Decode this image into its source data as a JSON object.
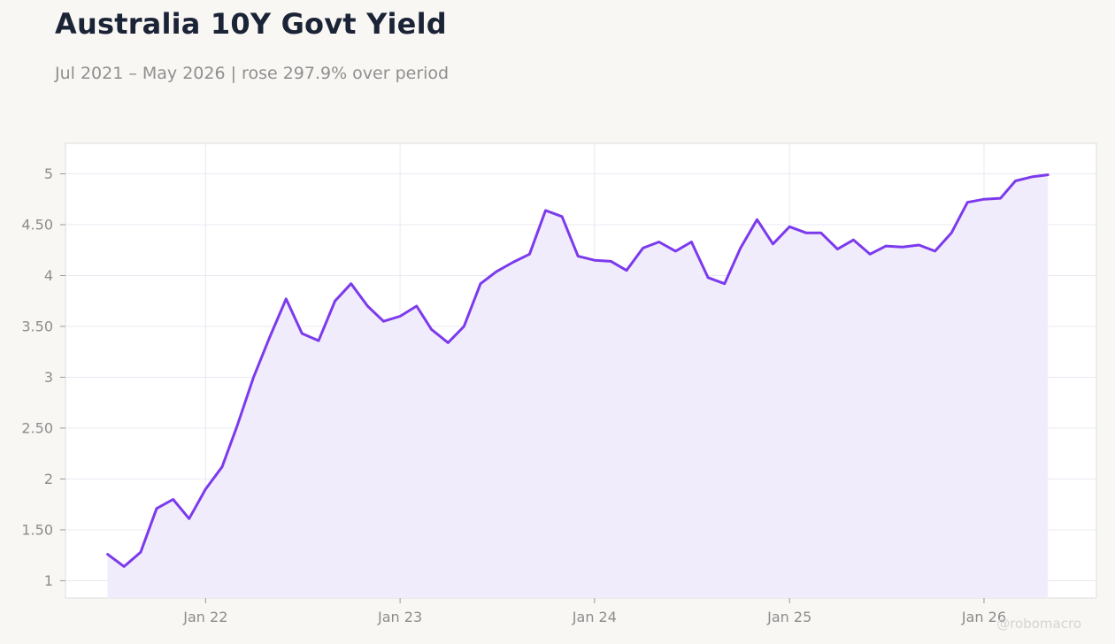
{
  "header": {
    "title": "Australia 10Y Govt Yield",
    "subtitle": "Jul 2021 – May 2026 | rose 297.9% over period"
  },
  "watermark": "@robomacro",
  "colors": {
    "background": "#f9f7f4",
    "plot_background": "#ffffff",
    "line": "#7c3aed",
    "fill": "#f1ecfc",
    "grid": "#ebe8f2",
    "axis_text": "#8c8c8c",
    "title": "#1b2436"
  },
  "chart_data": {
    "type": "area",
    "title": "Australia 10Y Govt Yield",
    "subtitle": "Jul 2021 – May 2026 | rose 297.9% over period",
    "xlabel": "",
    "ylabel": "",
    "ylim": [
      0.83,
      5.3
    ],
    "xlim": [
      "2021-04-13",
      "2026-07-31"
    ],
    "grid": true,
    "legend": "none",
    "x_ticks": [
      {
        "date": "2022-01-01",
        "label": "Jan 22"
      },
      {
        "date": "2023-01-01",
        "label": "Jan 23"
      },
      {
        "date": "2024-01-01",
        "label": "Jan 24"
      },
      {
        "date": "2025-01-01",
        "label": "Jan 25"
      },
      {
        "date": "2026-01-01",
        "label": "Jan 26"
      }
    ],
    "y_ticks": [
      {
        "value": 1,
        "label": "1"
      },
      {
        "value": 1.5,
        "label": "1.50"
      },
      {
        "value": 2,
        "label": "2"
      },
      {
        "value": 2.5,
        "label": "2.50"
      },
      {
        "value": 3,
        "label": "3"
      },
      {
        "value": 3.5,
        "label": "3.50"
      },
      {
        "value": 4,
        "label": "4"
      },
      {
        "value": 4.5,
        "label": "4.50"
      },
      {
        "value": 5,
        "label": "5"
      }
    ],
    "series": [
      {
        "x": [
          "2021-07-01",
          "2021-08-01",
          "2021-09-01",
          "2021-10-01",
          "2021-11-01",
          "2021-12-01",
          "2022-01-01",
          "2022-02-01",
          "2022-03-01",
          "2022-04-01",
          "2022-05-01",
          "2022-06-01",
          "2022-07-01",
          "2022-08-01",
          "2022-09-01",
          "2022-10-01",
          "2022-11-01",
          "2022-12-01",
          "2023-01-01",
          "2023-02-01",
          "2023-03-01",
          "2023-04-01",
          "2023-05-01",
          "2023-06-01",
          "2023-07-01",
          "2023-08-01",
          "2023-09-01",
          "2023-10-01",
          "2023-11-01",
          "2023-12-01",
          "2024-01-01",
          "2024-02-01",
          "2024-03-01",
          "2024-04-01",
          "2024-05-01",
          "2024-06-01",
          "2024-07-01",
          "2024-08-01",
          "2024-09-01",
          "2024-10-01",
          "2024-11-01",
          "2024-12-01",
          "2025-01-01",
          "2025-02-01",
          "2025-03-01",
          "2025-04-01",
          "2025-05-01",
          "2025-06-01",
          "2025-07-01",
          "2025-08-01",
          "2025-09-01",
          "2025-10-01",
          "2025-11-01",
          "2025-12-01",
          "2026-01-01",
          "2026-02-01",
          "2026-03-01",
          "2026-04-01",
          "2026-05-01"
        ],
        "y": [
          1.26,
          1.14,
          1.28,
          1.71,
          1.8,
          1.61,
          1.9,
          2.12,
          2.52,
          3.0,
          3.39,
          3.77,
          3.43,
          3.36,
          3.75,
          3.92,
          3.7,
          3.55,
          3.6,
          3.7,
          3.47,
          3.34,
          3.5,
          3.92,
          4.04,
          4.13,
          4.21,
          4.64,
          4.58,
          4.19,
          4.15,
          4.14,
          4.05,
          4.27,
          4.33,
          4.24,
          4.33,
          3.98,
          3.92,
          4.27,
          4.55,
          4.31,
          4.48,
          4.42,
          4.42,
          4.26,
          4.35,
          4.21,
          4.29,
          4.28,
          4.3,
          4.24,
          4.42,
          4.72,
          4.75,
          4.76,
          4.93,
          4.97,
          4.99
        ]
      }
    ]
  }
}
